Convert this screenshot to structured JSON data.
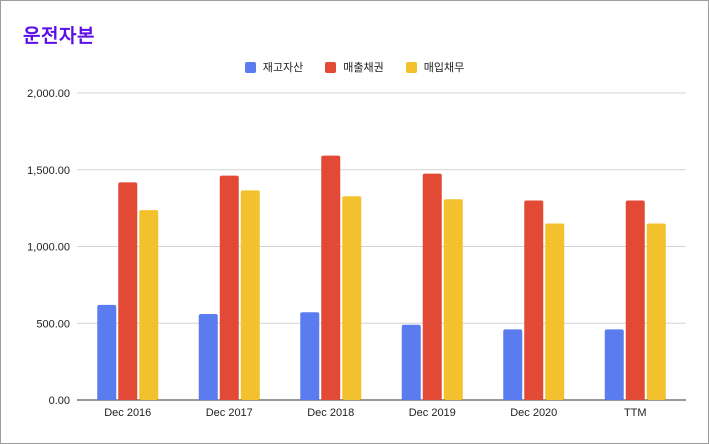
{
  "title": "운전자본",
  "colors": {
    "title": "#5b0ee8",
    "series": [
      "#5b7cee",
      "#e24a35",
      "#f2c12d"
    ]
  },
  "chart_data": {
    "type": "bar",
    "categories": [
      "Dec 2016",
      "Dec 2017",
      "Dec 2018",
      "Dec 2019",
      "Dec 2020",
      "TTM"
    ],
    "series": [
      {
        "name": "재고자산",
        "values": [
          620,
          560,
          572,
          490,
          460,
          460
        ]
      },
      {
        "name": "매출채권",
        "values": [
          1418,
          1462,
          1592,
          1475,
          1300,
          1300
        ]
      },
      {
        "name": "매입채무",
        "values": [
          1237,
          1366,
          1327,
          1308,
          1150,
          1150
        ]
      }
    ],
    "ylim": [
      0,
      2000
    ],
    "yticks": [
      "0.00",
      "500.00",
      "1,000.00",
      "1,500.00",
      "2,000.00"
    ],
    "legend_position": "top-center",
    "grid": true
  }
}
